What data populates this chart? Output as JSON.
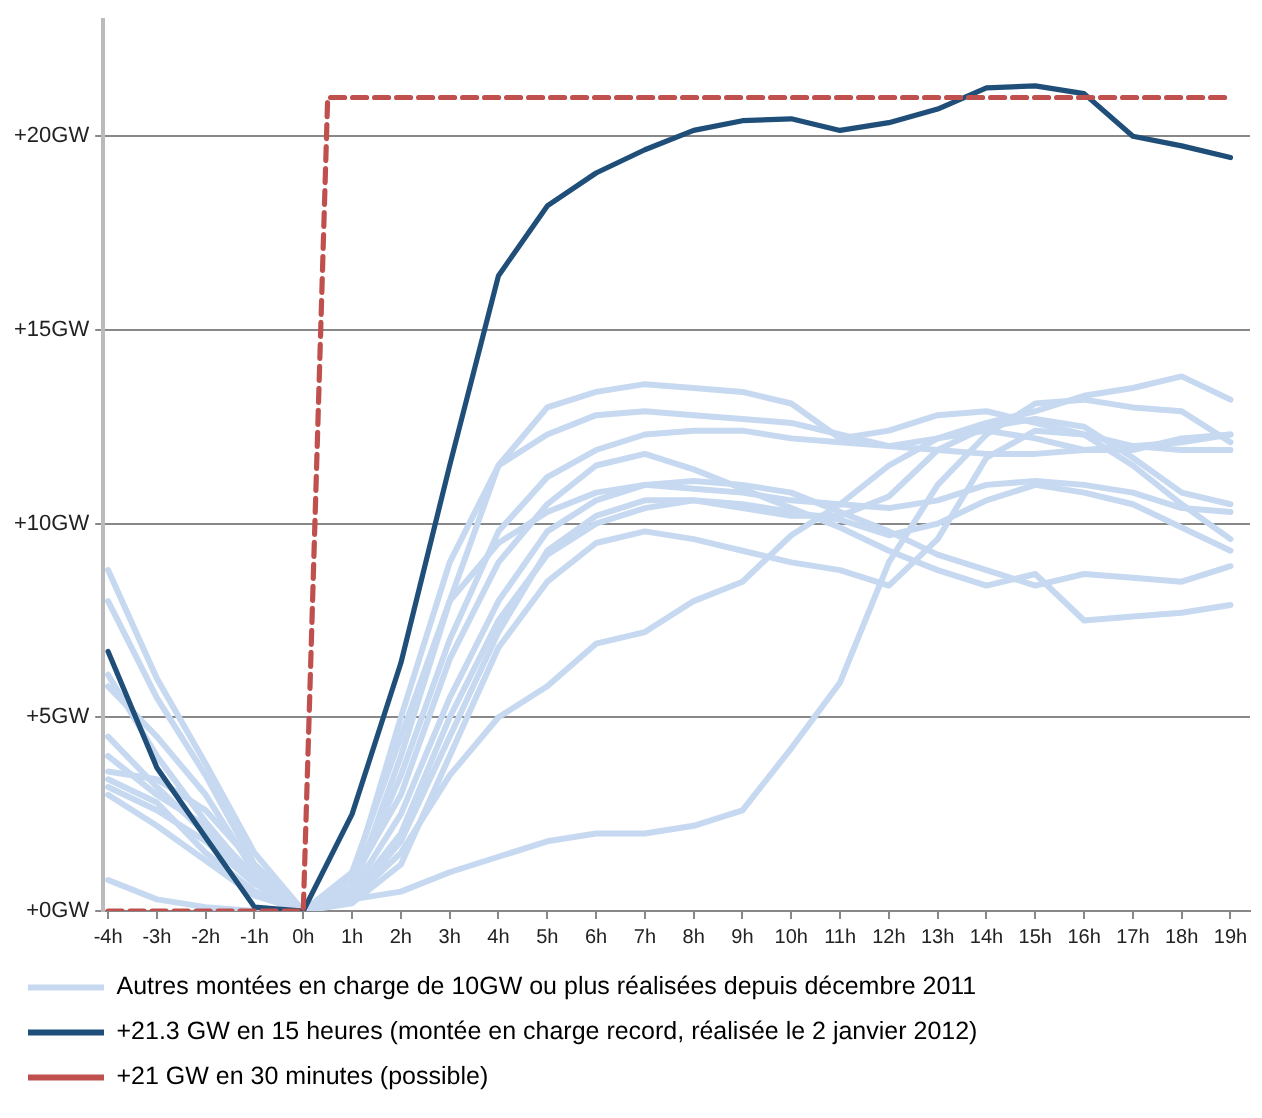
{
  "chart_data": {
    "type": "line",
    "x": [
      -4,
      -3,
      -2,
      -1,
      0,
      1,
      2,
      3,
      4,
      5,
      6,
      7,
      8,
      9,
      10,
      11,
      12,
      13,
      14,
      15,
      16,
      17,
      18,
      19
    ],
    "xlim": [
      -4.1,
      19.4
    ],
    "xticks": [
      {
        "value": -4,
        "label": "-4h"
      },
      {
        "value": -3,
        "label": "-3h"
      },
      {
        "value": -2,
        "label": "-2h"
      },
      {
        "value": -1,
        "label": "-1h"
      },
      {
        "value": 0,
        "label": "0h"
      },
      {
        "value": 1,
        "label": "1h"
      },
      {
        "value": 2,
        "label": "2h"
      },
      {
        "value": 3,
        "label": "3h"
      },
      {
        "value": 4,
        "label": "4h"
      },
      {
        "value": 5,
        "label": "5h"
      },
      {
        "value": 6,
        "label": "6h"
      },
      {
        "value": 7,
        "label": "7h"
      },
      {
        "value": 8,
        "label": "8h"
      },
      {
        "value": 9,
        "label": "9h"
      },
      {
        "value": 10,
        "label": "10h"
      },
      {
        "value": 11,
        "label": "11h"
      },
      {
        "value": 12,
        "label": "12h"
      },
      {
        "value": 13,
        "label": "13h"
      },
      {
        "value": 14,
        "label": "14h"
      },
      {
        "value": 15,
        "label": "15h"
      },
      {
        "value": 16,
        "label": "16h"
      },
      {
        "value": 17,
        "label": "17h"
      },
      {
        "value": 18,
        "label": "18h"
      },
      {
        "value": 19,
        "label": "19h"
      }
    ],
    "ylim": [
      0,
      23
    ],
    "yticks": [
      {
        "value": 0,
        "label": "+0GW"
      },
      {
        "value": 5,
        "label": "+5GW"
      },
      {
        "value": 10,
        "label": "+10GW"
      },
      {
        "value": 15,
        "label": "+15GW"
      },
      {
        "value": 20,
        "label": "+20GW"
      }
    ],
    "grid": "y",
    "legend": "bottom",
    "marker": "none",
    "series": [
      {
        "name": "Autres montées en charge de 10GW ou plus réalisées depuis décembre 2011",
        "color": "#c6d9f1",
        "values": [
          8.8,
          6,
          3.8,
          1.5,
          0,
          0.5,
          4,
          8,
          11.5,
          13.0,
          13.4,
          13.6,
          13.5,
          13.4,
          13.1,
          12.2,
          12.4,
          12.8,
          12.9,
          12.6,
          12.3,
          12.0,
          11.9,
          11.9
        ]
      },
      {
        "color": "#c6d9f1",
        "values": [
          8.0,
          5.5,
          3.5,
          1.2,
          0,
          0.8,
          5,
          9,
          11.5,
          12.3,
          12.8,
          12.9,
          12.8,
          12.7,
          12.6,
          12.3,
          12.0,
          11.9,
          11.8,
          11.8,
          11.9,
          12.0,
          12.1,
          12.3
        ]
      },
      {
        "color": "#c6d9f1",
        "values": [
          0.8,
          0.3,
          0.1,
          0,
          0,
          0.3,
          0.5,
          1.0,
          1.4,
          1.8,
          2.0,
          2.0,
          2.2,
          2.6,
          4.2,
          5.9,
          9.0,
          11.0,
          12.3,
          13.1,
          13.2,
          13.0,
          12.9,
          12.1
        ]
      },
      {
        "color": "#c6d9f1",
        "values": [
          3.4,
          2.8,
          1.5,
          0.5,
          0,
          0.3,
          1.5,
          3.5,
          5.0,
          5.8,
          6.9,
          7.2,
          8.0,
          8.5,
          9.7,
          10.5,
          11.5,
          12.2,
          12.6,
          12.9,
          13.3,
          13.5,
          13.8,
          13.2
        ]
      },
      {
        "color": "#c6d9f1",
        "values": [
          6.1,
          4,
          2.3,
          0.8,
          0,
          1,
          4.5,
          8,
          9.5,
          10.3,
          10.8,
          11.0,
          11.1,
          11.0,
          10.8,
          10.3,
          9.8,
          9.2,
          8.8,
          8.4,
          8.7,
          8.6,
          8.5,
          8.9
        ]
      },
      {
        "color": "#c6d9f1",
        "values": [
          5.8,
          4.5,
          3,
          1,
          0,
          0.8,
          3,
          6.5,
          9,
          10.5,
          11.5,
          11.8,
          11.4,
          10.9,
          10.4,
          9.9,
          9.3,
          8.8,
          8.4,
          8.7,
          7.5,
          7.6,
          7.7,
          7.9
        ]
      },
      {
        "color": "#c6d9f1",
        "values": [
          4.5,
          3.2,
          2.0,
          0.8,
          0,
          0.5,
          2.5,
          5.5,
          8,
          9.8,
          10.6,
          11.0,
          10.9,
          10.8,
          10.6,
          10.5,
          10.4,
          10.6,
          11.0,
          11.1,
          11.0,
          10.8,
          10.4,
          10.3
        ]
      },
      {
        "color": "#c6d9f1",
        "values": [
          4.0,
          3.0,
          2.2,
          0.9,
          0,
          0.4,
          2,
          5,
          7.5,
          9.2,
          10.0,
          10.4,
          10.6,
          10.5,
          10.3,
          10.1,
          9.7,
          10.0,
          10.6,
          11.0,
          10.8,
          10.5,
          9.9,
          9.3
        ]
      },
      {
        "color": "#c6d9f1",
        "values": [
          3.6,
          3.4,
          2.6,
          1.2,
          0,
          0.3,
          1.8,
          4.5,
          7.2,
          9.3,
          10.2,
          10.6,
          10.6,
          10.4,
          10.2,
          10.2,
          10.7,
          11.9,
          12.5,
          12.7,
          12.5,
          11.7,
          10.8,
          10.5
        ]
      },
      {
        "color": "#c6d9f1",
        "values": [
          3.2,
          2.6,
          1.8,
          0.7,
          0,
          0.2,
          1.2,
          4,
          6.8,
          8.5,
          9.5,
          9.8,
          9.6,
          9.3,
          9.0,
          8.8,
          8.4,
          9.6,
          11.7,
          12.4,
          12.3,
          11.5,
          10.5,
          9.6
        ]
      },
      {
        "color": "#c6d9f1",
        "values": [
          3.0,
          2.2,
          1.3,
          0.4,
          0,
          0.6,
          3.5,
          7,
          9.8,
          11.2,
          11.9,
          12.3,
          12.4,
          12.4,
          12.2,
          12.1,
          12.0,
          12.2,
          12.4,
          12.2,
          11.9,
          11.9,
          12.2,
          12.3
        ]
      },
      {
        "name": "+21.3 GW en 15 heures (montée en charge record, réalisée le 2 janvier 2012)",
        "color": "#1f4e79",
        "values": [
          6.7,
          3.7,
          1.9,
          0.1,
          0,
          2.5,
          6.4,
          11.5,
          16.4,
          18.2,
          19.05,
          19.65,
          20.15,
          20.4,
          20.45,
          20.15,
          20.35,
          20.7,
          21.25,
          21.3,
          21.1,
          20.0,
          19.75,
          19.45
        ]
      },
      {
        "name": "+21 GW en 30 minutes (possible)",
        "color": "#c0504d",
        "line_style": "dashed",
        "x": [
          -4,
          0,
          0.5,
          19
        ],
        "values": [
          0,
          0,
          21,
          21
        ]
      }
    ]
  }
}
